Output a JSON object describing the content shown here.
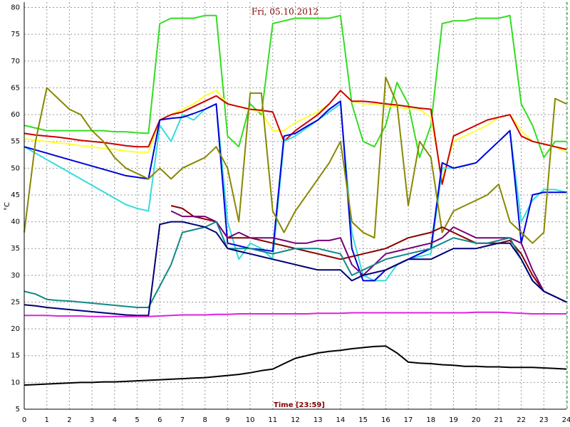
{
  "chart_data": {
    "type": "line",
    "title": "Fri, 05.10.2012",
    "xlabel": "Time [23:59]",
    "ylabel": "°C",
    "x": [
      0,
      0.5,
      1,
      1.5,
      2,
      2.5,
      3,
      3.5,
      4,
      4.5,
      5,
      5.5,
      6,
      6.5,
      7,
      7.5,
      8,
      8.5,
      9,
      9.5,
      10,
      10.5,
      11,
      11.5,
      12,
      12.5,
      13,
      13.5,
      14,
      14.5,
      15,
      15.5,
      16,
      16.5,
      17,
      17.5,
      18,
      18.5,
      19,
      19.5,
      20,
      20.5,
      21,
      21.5,
      22,
      22.5,
      23,
      23.5,
      24
    ],
    "xlim": [
      0,
      24
    ],
    "xticks": [
      0,
      1,
      2,
      3,
      4,
      5,
      6,
      7,
      8,
      9,
      10,
      11,
      12,
      13,
      14,
      15,
      16,
      17,
      18,
      19,
      20,
      21,
      22,
      23,
      24
    ],
    "ylim": [
      5,
      81
    ],
    "yticks": [
      5,
      10,
      15,
      20,
      25,
      30,
      35,
      40,
      45,
      50,
      55,
      60,
      65,
      70,
      75,
      80
    ],
    "grid": true,
    "series": [
      {
        "color": "#33dd22",
        "values": [
          58,
          57.5,
          57,
          57,
          57,
          57,
          57,
          57,
          56.8,
          56.8,
          56.6,
          56.5,
          77,
          78,
          78,
          78,
          78.5,
          78.5,
          56,
          54,
          62,
          60,
          77,
          77.5,
          78,
          78,
          78,
          78,
          78.5,
          62,
          55,
          54,
          58,
          66,
          62,
          52,
          58,
          77,
          77.5,
          77.5,
          78,
          78,
          78,
          78.5,
          62,
          58,
          52,
          55,
          55
        ]
      },
      {
        "color": "#ffff33",
        "values": [
          55.5,
          55.2,
          55,
          54.7,
          54.5,
          54.2,
          54,
          53.7,
          53.5,
          53.2,
          53,
          53,
          59,
          60,
          61,
          62,
          63.5,
          64.5,
          62,
          61.5,
          61,
          60.5,
          57,
          57,
          58.5,
          59.5,
          60.5,
          62,
          64.5,
          62.5,
          62,
          62,
          61.5,
          61.5,
          61,
          61,
          59.5,
          48,
          55,
          56,
          57,
          58,
          59.5,
          60,
          57,
          55,
          54.5,
          54,
          53
        ]
      },
      {
        "color": "#cc0000",
        "values": [
          56.5,
          56.2,
          56,
          55.8,
          55.5,
          55.2,
          55,
          54.8,
          54.5,
          54.2,
          54,
          54,
          59,
          60,
          60.5,
          61.5,
          62.5,
          63.5,
          62,
          61.5,
          61,
          60.8,
          60.5,
          55,
          57,
          58.5,
          60,
          62,
          64.5,
          62.5,
          62.5,
          62.3,
          62,
          61.8,
          61.5,
          61.2,
          61,
          47,
          56,
          57,
          58,
          59,
          59.5,
          60,
          56,
          55,
          54.5,
          54,
          53.5
        ]
      },
      {
        "color": "#33dddd",
        "values": [
          54,
          52.8,
          51.6,
          50.4,
          49.2,
          48,
          46.8,
          45.6,
          44.4,
          43.2,
          42.5,
          42,
          58,
          55,
          60,
          59,
          61,
          62,
          40,
          33,
          36,
          35,
          33,
          55,
          56,
          57.5,
          59,
          60.5,
          62,
          38,
          30,
          29,
          29,
          32,
          33,
          33.5,
          34,
          50,
          50,
          50.5,
          51,
          53,
          55,
          57,
          40,
          44,
          46,
          46,
          45.5
        ]
      },
      {
        "color": "#0000dd",
        "values": [
          54,
          53.4,
          52.8,
          52.2,
          51.6,
          51,
          50.4,
          49.8,
          49.2,
          48.6,
          48.3,
          48,
          59,
          59.3,
          59.5,
          60.2,
          61,
          62,
          36,
          35.5,
          35,
          34.8,
          34.5,
          56,
          56.5,
          57.8,
          59,
          61,
          62.5,
          35,
          29,
          29,
          31,
          32,
          33,
          34,
          35,
          51,
          50,
          50.5,
          51,
          53,
          55,
          57,
          36,
          45,
          45.5,
          45.5,
          45.5
        ]
      },
      {
        "color": "#888800",
        "values": [
          38,
          55,
          65,
          63,
          61,
          60,
          57,
          55,
          52,
          50,
          49,
          48,
          50,
          48,
          50,
          51,
          52,
          54,
          50,
          40,
          64,
          64,
          42,
          38,
          42,
          45,
          48,
          51,
          55,
          40,
          38,
          37,
          67,
          62,
          43,
          55,
          52,
          38,
          42,
          43,
          44,
          45,
          47,
          40,
          38,
          36,
          38,
          63,
          62
        ]
      },
      {
        "color": "#880000",
        "values": [
          null,
          null,
          null,
          null,
          null,
          null,
          null,
          null,
          null,
          null,
          null,
          null,
          null,
          43,
          42.5,
          41,
          40.5,
          40,
          37,
          37,
          37,
          36.5,
          36,
          35.5,
          35,
          34.5,
          34,
          33.5,
          33,
          33.5,
          34,
          34.5,
          35,
          36,
          37,
          37.5,
          38,
          39,
          38,
          37,
          36,
          36,
          36,
          36.5,
          34,
          30,
          27,
          26,
          25
        ]
      },
      {
        "color": "#770077",
        "values": [
          null,
          null,
          null,
          null,
          null,
          null,
          null,
          null,
          null,
          null,
          null,
          null,
          null,
          42,
          41,
          41,
          41,
          40,
          37,
          38,
          37,
          37,
          37,
          36.5,
          36,
          36,
          36.5,
          36.5,
          37,
          32,
          30,
          32,
          34,
          34.5,
          35,
          35.5,
          36,
          37,
          39,
          38,
          37,
          37,
          37,
          37,
          36,
          31,
          27,
          26,
          25
        ]
      },
      {
        "color": "#118888",
        "values": [
          27,
          26.5,
          25.5,
          25.3,
          25.2,
          25,
          24.8,
          24.6,
          24.4,
          24.2,
          24,
          24,
          28,
          32,
          38,
          38.5,
          39,
          40,
          35,
          35,
          35,
          34.5,
          34,
          34.5,
          35,
          35,
          35,
          34.5,
          34,
          30,
          31,
          32,
          33,
          33.5,
          34,
          34.5,
          35,
          36,
          37,
          36.5,
          36,
          36,
          36.5,
          37,
          33,
          29,
          27,
          26,
          25
        ]
      },
      {
        "color": "#000077",
        "values": [
          24.5,
          24.3,
          24,
          23.8,
          23.6,
          23.4,
          23.2,
          23,
          22.8,
          22.6,
          22.5,
          22.5,
          39.5,
          40,
          40,
          39.5,
          39,
          38,
          35,
          34.5,
          34,
          33.5,
          33,
          32.5,
          32,
          31.5,
          31,
          31,
          31,
          29,
          30,
          30.5,
          31,
          32,
          33,
          33,
          33,
          34,
          35,
          35,
          35,
          35.5,
          36,
          36,
          33,
          29,
          27,
          26,
          25
        ]
      },
      {
        "color": "#dd22dd",
        "values": [
          22.5,
          22.5,
          22.5,
          22.4,
          22.4,
          22.4,
          22.3,
          22.3,
          22.3,
          22.3,
          22.3,
          22.3,
          22.4,
          22.5,
          22.6,
          22.6,
          22.6,
          22.7,
          22.7,
          22.8,
          22.8,
          22.8,
          22.8,
          22.8,
          22.8,
          22.8,
          22.9,
          22.9,
          22.9,
          23,
          23,
          23,
          23,
          23,
          23,
          23,
          23,
          23,
          23,
          23,
          23.1,
          23.1,
          23.1,
          23,
          22.9,
          22.8,
          22.8,
          22.8,
          22.8
        ]
      },
      {
        "color": "#000000",
        "values": [
          9.5,
          9.6,
          9.7,
          9.8,
          9.9,
          10,
          10,
          10.1,
          10.1,
          10.2,
          10.3,
          10.4,
          10.5,
          10.6,
          10.7,
          10.8,
          10.9,
          11.1,
          11.3,
          11.5,
          11.8,
          12.2,
          12.5,
          13.5,
          14.5,
          15,
          15.5,
          15.8,
          16,
          16.3,
          16.5,
          16.7,
          16.8,
          15.5,
          13.8,
          13.6,
          13.5,
          13.3,
          13.2,
          13,
          13,
          12.9,
          12.9,
          12.8,
          12.8,
          12.8,
          12.7,
          12.6,
          12.5
        ]
      }
    ]
  }
}
